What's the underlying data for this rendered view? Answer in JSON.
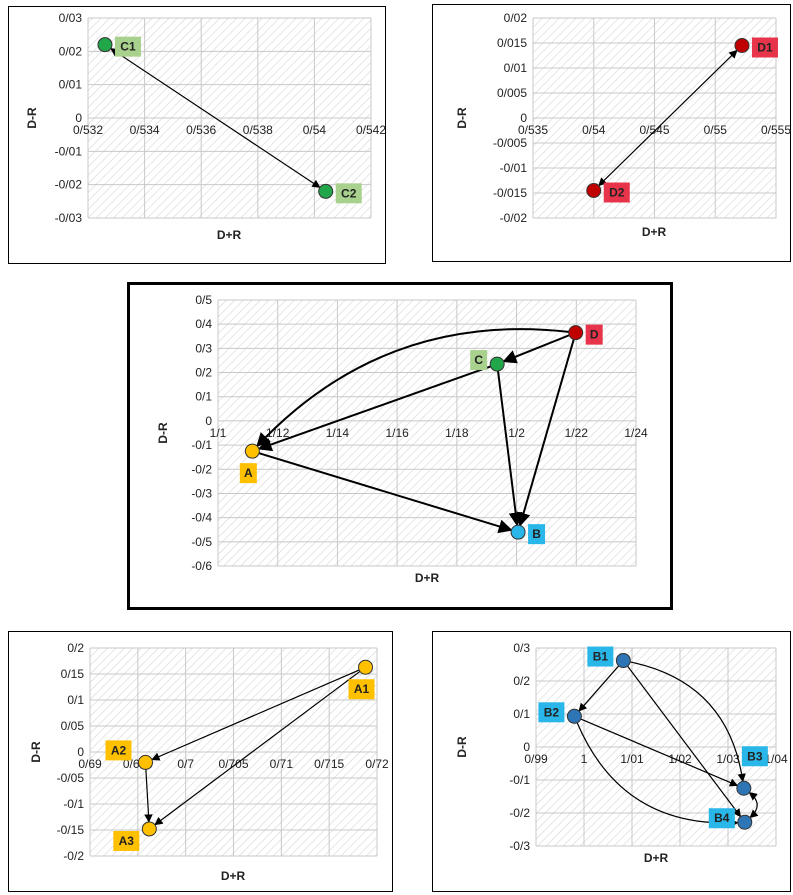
{
  "chart_data": [
    {
      "type": "scatter",
      "xlabel": "D+R",
      "ylabel": "D-R",
      "xlim": [
        0.532,
        0.542
      ],
      "ylim": [
        -0.03,
        0.03
      ],
      "xticks": [
        0.532,
        0.534,
        0.536,
        0.538,
        0.54,
        0.542
      ],
      "xtick_labels": [
        "0/532",
        "0/534",
        "0/536",
        "0/538",
        "0/54",
        "0/542"
      ],
      "yticks": [
        0.03,
        0.02,
        0.01,
        0,
        -0.01,
        -0.02,
        -0.03
      ],
      "ytick_labels": [
        "0/03",
        "0/02",
        "0/01",
        "0",
        "-0/01",
        "-0/02",
        "-0/03"
      ],
      "xaxis_at_y": 0,
      "grid": true,
      "points": [
        {
          "label": "C1",
          "x": 0.5326,
          "y": 0.022,
          "color": "#22a64a",
          "label_bg": "#a9d18e",
          "label_color": "#222222"
        },
        {
          "label": "C2",
          "x": 0.5404,
          "y": -0.022,
          "color": "#22a64a",
          "label_bg": "#a9d18e",
          "label_color": "#222222"
        }
      ],
      "edges": [
        {
          "from": "C1",
          "to": "C2",
          "both": true
        }
      ]
    },
    {
      "type": "scatter",
      "xlabel": "D+R",
      "ylabel": "D-R",
      "xlim": [
        0.535,
        0.555
      ],
      "ylim": [
        -0.02,
        0.02
      ],
      "xticks": [
        0.535,
        0.54,
        0.545,
        0.55,
        0.555
      ],
      "xtick_labels": [
        "0/535",
        "0/54",
        "0/545",
        "0/55",
        "0/555"
      ],
      "yticks": [
        0.02,
        0.015,
        0.01,
        0.005,
        0,
        -0.005,
        -0.01,
        -0.015,
        -0.02
      ],
      "ytick_labels": [
        "0/02",
        "0/015",
        "0/01",
        "0/005",
        "0",
        "-0/005",
        "-0/01",
        "-0/015",
        "-0/02"
      ],
      "xaxis_at_y": 0,
      "grid": true,
      "points": [
        {
          "label": "D1",
          "x": 0.5522,
          "y": 0.0145,
          "color": "#c00000",
          "label_bg": "#e8344a",
          "label_color": "#222222"
        },
        {
          "label": "D2",
          "x": 0.54,
          "y": -0.0145,
          "color": "#c00000",
          "label_bg": "#e8344a",
          "label_color": "#222222"
        }
      ],
      "edges": [
        {
          "from": "D1",
          "to": "D2",
          "both": true
        }
      ]
    },
    {
      "type": "scatter",
      "xlabel": "D+R",
      "ylabel": "D-R",
      "xlim": [
        1.1,
        1.24
      ],
      "ylim": [
        -0.6,
        0.5
      ],
      "xticks": [
        1.1,
        1.12,
        1.14,
        1.16,
        1.18,
        1.2,
        1.22,
        1.24
      ],
      "xtick_labels": [
        "1/1",
        "1/12",
        "1/14",
        "1/16",
        "1/18",
        "1/2",
        "1/22",
        "1/24"
      ],
      "yticks": [
        0.5,
        0.4,
        0.3,
        0.2,
        0.1,
        0,
        -0.1,
        -0.2,
        -0.3,
        -0.4,
        -0.5,
        -0.6
      ],
      "ytick_labels": [
        "0/5",
        "0/4",
        "0/3",
        "0/2",
        "0/1",
        "0",
        "-0/1",
        "-0/2",
        "-0/3",
        "-0/4",
        "-0/5",
        "-0/6"
      ],
      "xaxis_at_y": 0,
      "grid": true,
      "points": [
        {
          "label": "A",
          "x": 1.1115,
          "y": -0.125,
          "color": "#ffc000",
          "label_bg": "#ffc000",
          "label_color": "#222222",
          "label_pos": "below"
        },
        {
          "label": "B",
          "x": 1.2005,
          "y": -0.46,
          "color": "#29b6e8",
          "label_bg": "#29b6e8",
          "label_color": "#222222",
          "label_pos": "right"
        },
        {
          "label": "C",
          "x": 1.1935,
          "y": 0.235,
          "color": "#22a64a",
          "label_bg": "#a9d18e",
          "label_color": "#222222",
          "label_pos": "left"
        },
        {
          "label": "D",
          "x": 1.2198,
          "y": 0.365,
          "color": "#c00000",
          "label_bg": "#e8344a",
          "label_color": "#222222",
          "label_pos": "right"
        }
      ],
      "edges": [
        {
          "from": "D",
          "to": "A",
          "curve": 0.25
        },
        {
          "from": "D",
          "to": "C"
        },
        {
          "from": "D",
          "to": "B"
        },
        {
          "from": "C",
          "to": "A"
        },
        {
          "from": "C",
          "to": "B"
        },
        {
          "from": "A",
          "to": "B"
        }
      ]
    },
    {
      "type": "scatter",
      "xlabel": "D+R",
      "ylabel": "D-R",
      "xlim": [
        0.69,
        0.72
      ],
      "ylim": [
        -0.2,
        0.2
      ],
      "xticks": [
        0.69,
        0.695,
        0.7,
        0.705,
        0.71,
        0.715,
        0.72
      ],
      "xtick_labels": [
        "0/69",
        "0/695",
        "0/7",
        "0/705",
        "0/71",
        "0/715",
        "0/72"
      ],
      "yticks": [
        0.2,
        0.15,
        0.1,
        0.05,
        0,
        -0.05,
        -0.1,
        -0.15,
        -0.2
      ],
      "ytick_labels": [
        "0/2",
        "0/15",
        "0/1",
        "0/05",
        "0",
        "-0/05",
        "-0/1",
        "-0/15",
        "-0/2"
      ],
      "xaxis_at_y": 0,
      "grid": true,
      "points": [
        {
          "label": "A1",
          "x": 0.7188,
          "y": 0.163,
          "color": "#ffc000",
          "label_bg": "#ffc000",
          "label_color": "#222222",
          "label_pos": "below"
        },
        {
          "label": "A2",
          "x": 0.6958,
          "y": -0.02,
          "color": "#ffc000",
          "label_bg": "#ffc000",
          "label_color": "#222222",
          "label_pos": "left-up"
        },
        {
          "label": "A3",
          "x": 0.6962,
          "y": -0.148,
          "color": "#ffc000",
          "label_bg": "#ffc000",
          "label_color": "#222222",
          "label_pos": "left-down"
        }
      ],
      "edges": [
        {
          "from": "A1",
          "to": "A2"
        },
        {
          "from": "A1",
          "to": "A3"
        },
        {
          "from": "A2",
          "to": "A3"
        }
      ]
    },
    {
      "type": "scatter",
      "xlabel": "D+R",
      "ylabel": "D-R",
      "xlim": [
        0.99,
        1.04
      ],
      "ylim": [
        -0.3,
        0.3
      ],
      "xticks": [
        0.99,
        1,
        1.01,
        1.02,
        1.03,
        1.04
      ],
      "xtick_labels": [
        "0/99",
        "1",
        "1/01",
        "1/02",
        "1/03",
        "1/04"
      ],
      "yticks": [
        0.3,
        0.2,
        0.1,
        0,
        -0.1,
        -0.2,
        -0.3
      ],
      "ytick_labels": [
        "0/3",
        "0/2",
        "0/1",
        "0",
        "-0/1",
        "-0/2",
        "-0/3"
      ],
      "xaxis_at_y": 0,
      "grid": true,
      "points": [
        {
          "label": "B1",
          "x": 1.0082,
          "y": 0.262,
          "color": "#2e75b6",
          "label_bg": "#29b6e8",
          "label_color": "#222222",
          "label_pos": "left"
        },
        {
          "label": "B2",
          "x": 0.998,
          "y": 0.093,
          "color": "#2e75b6",
          "label_bg": "#29b6e8",
          "label_color": "#222222",
          "label_pos": "left"
        },
        {
          "label": "B3",
          "x": 1.0333,
          "y": -0.125,
          "color": "#2e75b6",
          "label_bg": "#29b6e8",
          "label_color": "#222222",
          "label_pos": "up-right"
        },
        {
          "label": "B4",
          "x": 1.0335,
          "y": -0.228,
          "color": "#2e75b6",
          "label_bg": "#29b6e8",
          "label_color": "#222222",
          "label_pos": "left"
        }
      ],
      "edges": [
        {
          "from": "B1",
          "to": "B2"
        },
        {
          "from": "B1",
          "to": "B3",
          "curve": -0.35
        },
        {
          "from": "B1",
          "to": "B4"
        },
        {
          "from": "B2",
          "to": "B3"
        },
        {
          "from": "B2",
          "to": "B4",
          "curve": 0.35
        },
        {
          "from": "B3",
          "to": "B4",
          "curve": -0.6,
          "both": true
        }
      ]
    }
  ]
}
